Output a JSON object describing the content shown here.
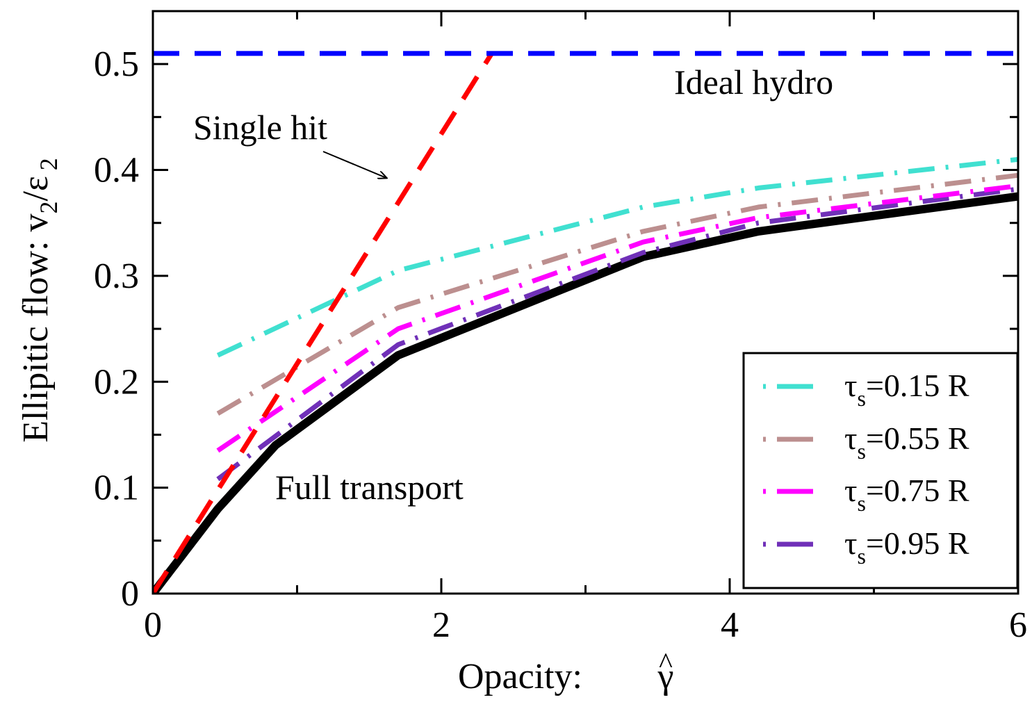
{
  "chart_data": {
    "type": "line",
    "xlabel": "Opacity: γ̂",
    "xlabel_text": "Opacity: ",
    "xlabel_symbol": "γ",
    "xlabel_hat": "^",
    "ylabel_prefix": "Ellipitic flow:  v",
    "ylabel_sub2": "2",
    "ylabel_slash": "/ε",
    "ylabel_sub2b": "2",
    "xlim": [
      0,
      6
    ],
    "ylim": [
      0,
      0.55
    ],
    "xticks": [
      0,
      2,
      4,
      6
    ],
    "xtick_labels": [
      "0",
      "2",
      "4",
      "6"
    ],
    "yticks": [
      0,
      0.1,
      0.2,
      0.3,
      0.4,
      0.5
    ],
    "ytick_labels": [
      "0",
      "0.1",
      "0.2",
      "0.3",
      "0.4",
      "0.5"
    ],
    "grid": false,
    "legend_position": "bottom-right",
    "annotations": {
      "ideal_hydro": "Ideal hydro",
      "single_hit": "Single hit",
      "full_transport": "Full transport"
    },
    "series": [
      {
        "key": "ideal",
        "color": "#0000ff",
        "style": "dashed",
        "x": [
          0,
          6
        ],
        "y": [
          0.51,
          0.51
        ]
      },
      {
        "key": "single",
        "color": "#ff0000",
        "style": "dashed",
        "x": [
          0,
          2.35
        ],
        "y": [
          0,
          0.51
        ]
      },
      {
        "key": "full",
        "color": "#000000",
        "style": "solid",
        "x": [
          0,
          0.45,
          0.85,
          1.7,
          3.4,
          4.2,
          6.0
        ],
        "y": [
          0,
          0.08,
          0.14,
          0.225,
          0.318,
          0.342,
          0.375
        ]
      },
      {
        "key": "t015",
        "name": "0.15 R",
        "color": "#40e0d0",
        "style": "dashdot",
        "x": [
          0.45,
          1.7,
          3.4,
          4.2,
          6.0
        ],
        "y": [
          0.225,
          0.305,
          0.365,
          0.383,
          0.41
        ]
      },
      {
        "key": "t055",
        "name": "0.55 R",
        "color": "#bc8f8f",
        "style": "dashdot",
        "x": [
          0.45,
          1.7,
          3.4,
          4.2,
          6.0
        ],
        "y": [
          0.17,
          0.27,
          0.342,
          0.365,
          0.395
        ]
      },
      {
        "key": "t075",
        "name": "0.75 R",
        "color": "#ff00ff",
        "style": "dashdot",
        "x": [
          0.45,
          1.7,
          3.4,
          4.2,
          6.0
        ],
        "y": [
          0.135,
          0.25,
          0.332,
          0.355,
          0.385
        ]
      },
      {
        "key": "t095",
        "name": "0.95 R",
        "color": "#7030b8",
        "style": "dashdot",
        "x": [
          0.45,
          1.7,
          3.4,
          4.2,
          6.0
        ],
        "y": [
          0.108,
          0.235,
          0.322,
          0.35,
          0.382
        ]
      }
    ],
    "legend": {
      "symbol": "τ",
      "subscript": "s",
      "items": [
        {
          "series": "t015",
          "label": "=0.15 R"
        },
        {
          "series": "t055",
          "label": "=0.55 R"
        },
        {
          "series": "t075",
          "label": "=0.75 R"
        },
        {
          "series": "t095",
          "label": "=0.95 R"
        }
      ]
    }
  }
}
